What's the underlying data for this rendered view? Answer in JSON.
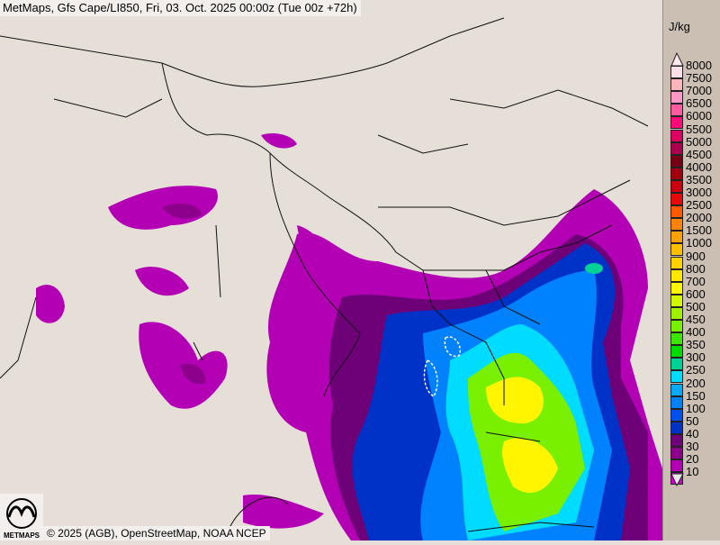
{
  "title": "MetMaps, Gfs Cape/LI850, Fri, 03. Oct. 2025 00:00z (Tue 00z +72h)",
  "credit": "© 2025 (AGB), OpenStreetMap, NOAA NCEP",
  "logo_text": "METMAPS",
  "legend": {
    "unit": "J/kg",
    "items": [
      {
        "label": "8000",
        "color": "#ffe0e8"
      },
      {
        "label": "7500",
        "color": "#ffb4bc"
      },
      {
        "label": "7000",
        "color": "#ff96c8"
      },
      {
        "label": "6500",
        "color": "#ff5aa0"
      },
      {
        "label": "6000",
        "color": "#ff0a78"
      },
      {
        "label": "5500",
        "color": "#dc0064"
      },
      {
        "label": "5000",
        "color": "#aa0050"
      },
      {
        "label": "4500",
        "color": "#780014"
      },
      {
        "label": "4000",
        "color": "#a00010"
      },
      {
        "label": "3500",
        "color": "#c80010"
      },
      {
        "label": "3000",
        "color": "#e60a0a"
      },
      {
        "label": "2500",
        "color": "#ff5a00"
      },
      {
        "label": "2000",
        "color": "#ff8200"
      },
      {
        "label": "1500",
        "color": "#ffa000"
      },
      {
        "label": "1000",
        "color": "#ffbe00"
      },
      {
        "label": "900",
        "color": "#ffd200"
      },
      {
        "label": "800",
        "color": "#ffe600"
      },
      {
        "label": "700",
        "color": "#fff500"
      },
      {
        "label": "600",
        "color": "#d2f500"
      },
      {
        "label": "500",
        "color": "#a0f000"
      },
      {
        "label": "450",
        "color": "#78f000"
      },
      {
        "label": "400",
        "color": "#3ce600"
      },
      {
        "label": "350",
        "color": "#00dc00"
      },
      {
        "label": "300",
        "color": "#00d296"
      },
      {
        "label": "250",
        "color": "#00dcff"
      },
      {
        "label": "200",
        "color": "#00aaff"
      },
      {
        "label": "150",
        "color": "#0082ff"
      },
      {
        "label": "100",
        "color": "#0050f0"
      },
      {
        "label": "50",
        "color": "#0032c8"
      },
      {
        "label": "40",
        "color": "#6e0078"
      },
      {
        "label": "30",
        "color": "#8c008c"
      },
      {
        "label": "20",
        "color": "#b400b4"
      },
      {
        "label": "10",
        "color": "#d200d2"
      }
    ]
  }
}
